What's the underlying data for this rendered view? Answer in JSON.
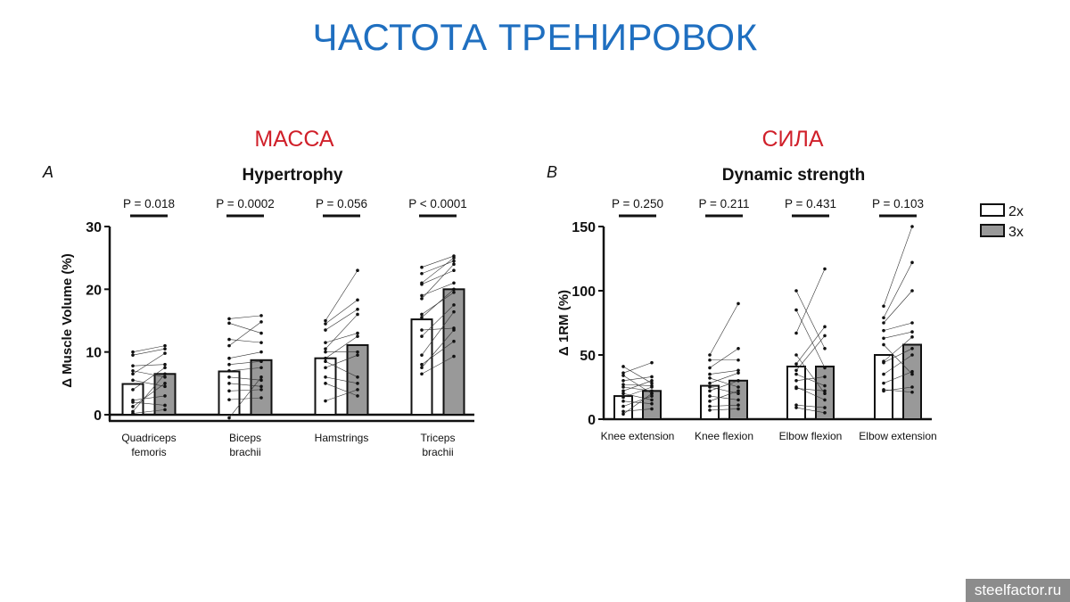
{
  "slide": {
    "title": "ЧАСТОТА ТРЕНИРОВОК",
    "left_subtitle": "МАССА",
    "right_subtitle": "СИЛА",
    "watermark": "steelfactor.ru",
    "title_color": "#1f6fc0",
    "subtitle_color": "#d0202a"
  },
  "legend": [
    {
      "label": "2x",
      "color": "#ffffff"
    },
    {
      "label": "3x",
      "color": "#999999"
    }
  ],
  "chart_data": [
    {
      "type": "bar",
      "panel": "A",
      "title": "Hypertrophy",
      "ylabel": "Δ Muscle Volume (%)",
      "ylim": [
        0,
        30
      ],
      "yticks": [
        0,
        10,
        20,
        30
      ],
      "categories": [
        "Quadriceps\nfemoris",
        "Biceps\nbrachii",
        "Hamstrings",
        "Triceps\nbrachii"
      ],
      "p_values": [
        "P = 0.018",
        "P = 0.0002",
        "P = 0.056",
        "P < 0.0001"
      ],
      "series": [
        {
          "name": "2x",
          "values": [
            4.9,
            6.9,
            9.0,
            15.2
          ]
        },
        {
          "name": "3x",
          "values": [
            6.5,
            8.7,
            11.1,
            20.0
          ]
        }
      ],
      "pairs": [
        [
          [
            10,
            11
          ],
          [
            9.5,
            10.5
          ],
          [
            7.8,
            8
          ],
          [
            7,
            6
          ],
          [
            6.5,
            9.8
          ],
          [
            5.5,
            4.5
          ],
          [
            4,
            7.5
          ],
          [
            2.3,
            3
          ],
          [
            2,
            1.5
          ],
          [
            1.3,
            5
          ],
          [
            0.5,
            6.5
          ],
          [
            0.2,
            0.8
          ]
        ],
        [
          [
            15.3,
            15.8
          ],
          [
            14.6,
            13
          ],
          [
            12,
            11.5
          ],
          [
            11,
            14.8
          ],
          [
            9,
            10
          ],
          [
            8,
            8.5
          ],
          [
            7,
            7.5
          ],
          [
            6,
            5.5
          ],
          [
            5,
            4.5
          ],
          [
            3.8,
            4
          ],
          [
            2.4,
            2.7
          ],
          [
            -0.5,
            6
          ]
        ],
        [
          [
            15,
            23
          ],
          [
            14.5,
            18.3
          ],
          [
            13.5,
            16.8
          ],
          [
            11.5,
            13
          ],
          [
            10.5,
            16
          ],
          [
            10,
            10
          ],
          [
            9,
            12.5
          ],
          [
            8.5,
            6
          ],
          [
            7.5,
            9.5
          ],
          [
            6,
            5
          ],
          [
            5,
            3
          ],
          [
            2.2,
            4
          ]
        ],
        [
          [
            23.5,
            25.3
          ],
          [
            22.5,
            24.5
          ],
          [
            21,
            25
          ],
          [
            20.8,
            23
          ],
          [
            19,
            21
          ],
          [
            18.5,
            24
          ],
          [
            16,
            19.5
          ],
          [
            15.5,
            20
          ],
          [
            13.5,
            13.8
          ],
          [
            12.5,
            17.5
          ],
          [
            9.5,
            16.4
          ],
          [
            8,
            11.7
          ],
          [
            7.5,
            13.5
          ],
          [
            6.5,
            9.3
          ]
        ]
      ]
    },
    {
      "type": "bar",
      "panel": "B",
      "title": "Dynamic strength",
      "ylabel": "Δ 1RM (%)",
      "ylim": [
        0,
        150
      ],
      "yticks": [
        0,
        50,
        100,
        150
      ],
      "categories": [
        "Knee extension",
        "Knee flexion",
        "Elbow flexion",
        "Elbow extension"
      ],
      "p_values": [
        "P = 0.250",
        "P = 0.211",
        "P = 0.431",
        "P = 0.103"
      ],
      "series": [
        {
          "name": "2x",
          "values": [
            18,
            26,
            41,
            50
          ]
        },
        {
          "name": "3x",
          "values": [
            22,
            30,
            41,
            58
          ]
        }
      ],
      "pairs": [
        [
          [
            41,
            28
          ],
          [
            36,
            44
          ],
          [
            34,
            20
          ],
          [
            30,
            33
          ],
          [
            27,
            26
          ],
          [
            25,
            22
          ],
          [
            22,
            30
          ],
          [
            20,
            15
          ],
          [
            17,
            25
          ],
          [
            14,
            12
          ],
          [
            10,
            18
          ],
          [
            6,
            8
          ],
          [
            4,
            20
          ]
        ],
        [
          [
            50,
            90
          ],
          [
            46,
            46
          ],
          [
            40,
            55
          ],
          [
            35,
            38
          ],
          [
            32,
            25
          ],
          [
            28,
            36
          ],
          [
            25,
            20
          ],
          [
            22,
            30
          ],
          [
            18,
            15
          ],
          [
            14,
            22
          ],
          [
            10,
            11
          ],
          [
            7,
            8
          ]
        ],
        [
          [
            100,
            55
          ],
          [
            85,
            40
          ],
          [
            67,
            117
          ],
          [
            50,
            20
          ],
          [
            43,
            72
          ],
          [
            38,
            65
          ],
          [
            35,
            26
          ],
          [
            30,
            33
          ],
          [
            25,
            15
          ],
          [
            24,
            22
          ],
          [
            11,
            9
          ],
          [
            9,
            5
          ]
        ],
        [
          [
            88,
            150
          ],
          [
            79,
            122
          ],
          [
            75,
            100
          ],
          [
            69,
            75
          ],
          [
            63,
            68
          ],
          [
            58,
            35
          ],
          [
            45,
            64
          ],
          [
            44,
            55
          ],
          [
            35,
            50
          ],
          [
            28,
            37
          ],
          [
            23,
            21
          ],
          [
            22,
            25
          ]
        ]
      ]
    }
  ]
}
